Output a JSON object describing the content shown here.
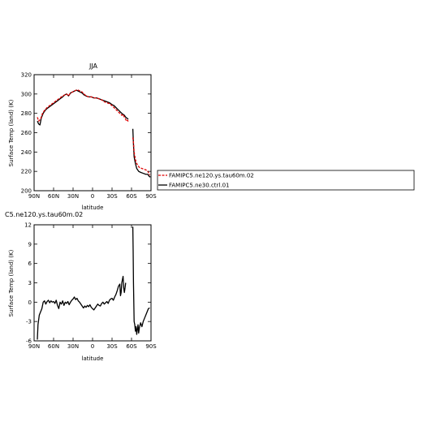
{
  "chart_data": [
    {
      "type": "line",
      "title": "JJA",
      "xlabel": "latitude",
      "ylabel": "Surface Temp (land) (K)",
      "xlim": [
        90,
        -90
      ],
      "ylim": [
        200,
        320
      ],
      "xticks": [
        90,
        60,
        30,
        0,
        -30,
        -60,
        -90
      ],
      "xtick_labels": [
        "90N",
        "60N",
        "30N",
        "0",
        "30S",
        "60S",
        "90S"
      ],
      "yticks": [
        200,
        220,
        240,
        260,
        280,
        300,
        320
      ],
      "ytick_labels": [
        "200",
        "220",
        "240",
        "260",
        "280",
        "300",
        "320"
      ],
      "legend_position": "right",
      "series": [
        {
          "name": "FAMIPC5.ne120.ys.tau60m.02",
          "color": "#e00000",
          "dash": "dashed",
          "segments": [
            [
              [
                85,
                276
              ],
              [
                83,
                272
              ],
              [
                80,
                274
              ],
              [
                77,
                280
              ],
              [
                74,
                283
              ],
              [
                70,
                286
              ],
              [
                66,
                288
              ],
              [
                62,
                290
              ],
              [
                58,
                292
              ],
              [
                54,
                294
              ],
              [
                50,
                296
              ],
              [
                46,
                298
              ],
              [
                43,
                299
              ],
              [
                40,
                300
              ],
              [
                37,
                298
              ],
              [
                34,
                301
              ],
              [
                31,
                302
              ],
              [
                28,
                303
              ],
              [
                25,
                304
              ],
              [
                22,
                304
              ],
              [
                19,
                303
              ],
              [
                16,
                302
              ],
              [
                13,
                300
              ],
              [
                10,
                298
              ],
              [
                6,
                297
              ],
              [
                2,
                297
              ],
              [
                -2,
                296
              ],
              [
                -6,
                296
              ],
              [
                -10,
                295
              ],
              [
                -14,
                294
              ],
              [
                -18,
                292
              ],
              [
                -22,
                291
              ],
              [
                -26,
                290
              ],
              [
                -30,
                288
              ],
              [
                -33,
                286
              ],
              [
                -36,
                284
              ],
              [
                -39,
                282
              ],
              [
                -42,
                280
              ],
              [
                -45,
                278
              ],
              [
                -47,
                279
              ],
              [
                -49,
                276
              ],
              [
                -51,
                274
              ],
              [
                -52,
                272
              ],
              [
                -54,
                273
              ],
              [
                -55,
                271
              ]
            ],
            [
              [
                -62,
                255
              ],
              [
                -63,
                250
              ],
              [
                -64,
                240
              ],
              [
                -66,
                232
              ],
              [
                -68,
                228
              ],
              [
                -72,
                224
              ],
              [
                -76,
                223
              ],
              [
                -80,
                222
              ],
              [
                -84,
                221
              ],
              [
                -86,
                219
              ],
              [
                -88,
                216
              ]
            ]
          ]
        },
        {
          "name": "FAMIPC5.ne30.ctrl.01",
          "color": "#000000",
          "dash": "solid",
          "segments": [
            [
              [
                85,
                272
              ],
              [
                83,
                269
              ],
              [
                81,
                268
              ],
              [
                79,
                275
              ],
              [
                76,
                280
              ],
              [
                73,
                283
              ],
              [
                70,
                285
              ],
              [
                66,
                287
              ],
              [
                62,
                289
              ],
              [
                58,
                291
              ],
              [
                54,
                293
              ],
              [
                50,
                295
              ],
              [
                46,
                297
              ],
              [
                43,
                299
              ],
              [
                40,
                300
              ],
              [
                37,
                298
              ],
              [
                34,
                301
              ],
              [
                31,
                302
              ],
              [
                28,
                303
              ],
              [
                25,
                304
              ],
              [
                22,
                303
              ],
              [
                19,
                302
              ],
              [
                16,
                301
              ],
              [
                13,
                299
              ],
              [
                10,
                298
              ],
              [
                6,
                297
              ],
              [
                2,
                297
              ],
              [
                -2,
                296
              ],
              [
                -6,
                296
              ],
              [
                -10,
                295
              ],
              [
                -14,
                294
              ],
              [
                -18,
                293
              ],
              [
                -22,
                292
              ],
              [
                -26,
                291
              ],
              [
                -30,
                289
              ],
              [
                -33,
                288
              ],
              [
                -36,
                286
              ],
              [
                -39,
                284
              ],
              [
                -42,
                282
              ],
              [
                -45,
                280
              ],
              [
                -47,
                279
              ],
              [
                -49,
                278
              ],
              [
                -51,
                276
              ],
              [
                -53,
                275
              ],
              [
                -55,
                274
              ]
            ],
            [
              [
                -62,
                264
              ],
              [
                -63,
                248
              ],
              [
                -64,
                235
              ],
              [
                -66,
                228
              ],
              [
                -68,
                223
              ],
              [
                -71,
                220
              ],
              [
                -74,
                219
              ],
              [
                -78,
                218
              ],
              [
                -82,
                217
              ],
              [
                -85,
                217
              ],
              [
                -87,
                215
              ],
              [
                -89,
                214
              ]
            ]
          ]
        }
      ]
    },
    {
      "type": "line",
      "title": "C5.ne120.ys.tau60m.02",
      "xlabel": "latitude",
      "ylabel": "Surface Temp (land) (K)",
      "xlim": [
        90,
        -90
      ],
      "ylim": [
        -6,
        12
      ],
      "xticks": [
        90,
        60,
        30,
        0,
        -30,
        -60,
        -90
      ],
      "xtick_labels": [
        "90N",
        "60N",
        "30N",
        "0",
        "30S",
        "60S",
        "90S"
      ],
      "yticks": [
        -6,
        -3,
        0,
        3,
        6,
        9,
        12
      ],
      "ytick_labels": [
        "-6",
        "-3",
        "0",
        "3",
        "6",
        "9",
        "12"
      ],
      "series": [
        {
          "color": "#000000",
          "dash": "solid",
          "segments": [
            [
              [
                85,
                -5.8
              ],
              [
                84,
                -3.5
              ],
              [
                82,
                -2
              ],
              [
                80,
                -1.5
              ],
              [
                78,
                -1
              ],
              [
                76,
                0
              ],
              [
                74,
                0.2
              ],
              [
                72,
                -0.3
              ],
              [
                70,
                0.1
              ],
              [
                68,
                0.3
              ],
              [
                66,
                -0.1
              ],
              [
                64,
                0.2
              ],
              [
                62,
                0
              ],
              [
                60,
                0.1
              ],
              [
                58,
                -0.2
              ],
              [
                56,
                0.3
              ],
              [
                54,
                -0.5
              ],
              [
                52,
                -1
              ],
              [
                50,
                0
              ],
              [
                48,
                -0.3
              ],
              [
                46,
                0.2
              ],
              [
                44,
                -0.5
              ],
              [
                42,
                0
              ],
              [
                40,
                -0.2
              ],
              [
                38,
                0.1
              ],
              [
                36,
                -0.4
              ],
              [
                34,
                0
              ],
              [
                32,
                0.3
              ],
              [
                30,
                0.5
              ],
              [
                28,
                0.8
              ],
              [
                26,
                0.4
              ],
              [
                24,
                0.6
              ],
              [
                22,
                0.2
              ],
              [
                20,
                0
              ],
              [
                18,
                -0.3
              ],
              [
                16,
                -0.6
              ],
              [
                14,
                -0.9
              ],
              [
                12,
                -0.6
              ],
              [
                10,
                -0.8
              ],
              [
                8,
                -0.5
              ],
              [
                6,
                -0.7
              ],
              [
                4,
                -0.4
              ],
              [
                2,
                -0.8
              ],
              [
                0,
                -1
              ],
              [
                -2,
                -1.2
              ],
              [
                -4,
                -0.9
              ],
              [
                -6,
                -0.6
              ],
              [
                -8,
                -0.3
              ],
              [
                -10,
                -0.5
              ],
              [
                -12,
                -0.6
              ],
              [
                -14,
                -0.2
              ],
              [
                -16,
                0
              ],
              [
                -18,
                -0.3
              ],
              [
                -20,
                -0.1
              ],
              [
                -22,
                0.1
              ],
              [
                -24,
                -0.2
              ],
              [
                -26,
                0.3
              ],
              [
                -28,
                0.5
              ],
              [
                -30,
                0.6
              ],
              [
                -32,
                0.3
              ],
              [
                -34,
                0.8
              ],
              [
                -36,
                1.2
              ],
              [
                -38,
                1.8
              ],
              [
                -40,
                2.5
              ],
              [
                -42,
                2.8
              ],
              [
                -43,
                1
              ],
              [
                -44,
                1.5
              ],
              [
                -45,
                3
              ],
              [
                -46,
                3.5
              ],
              [
                -47,
                4
              ],
              [
                -48,
                2.2
              ],
              [
                -49,
                1.5
              ],
              [
                -50,
                2.2
              ],
              [
                -51,
                3
              ]
            ],
            [
              [
                -62,
                11.7
              ],
              [
                -62.5,
                8
              ],
              [
                -63,
                3
              ],
              [
                -64,
                -3
              ],
              [
                -65,
                -3.5
              ],
              [
                -66,
                -4.5
              ],
              [
                -67,
                -3.8
              ],
              [
                -68,
                -5
              ],
              [
                -69,
                -4.2
              ],
              [
                -70,
                -3.5
              ],
              [
                -71,
                -4.8
              ],
              [
                -72,
                -4
              ],
              [
                -74,
                -3.2
              ],
              [
                -76,
                -3.8
              ],
              [
                -78,
                -3
              ],
              [
                -80,
                -2.5
              ],
              [
                -82,
                -2
              ],
              [
                -84,
                -1.5
              ],
              [
                -86,
                -1
              ],
              [
                -88,
                -0.9
              ]
            ]
          ]
        }
      ]
    }
  ]
}
